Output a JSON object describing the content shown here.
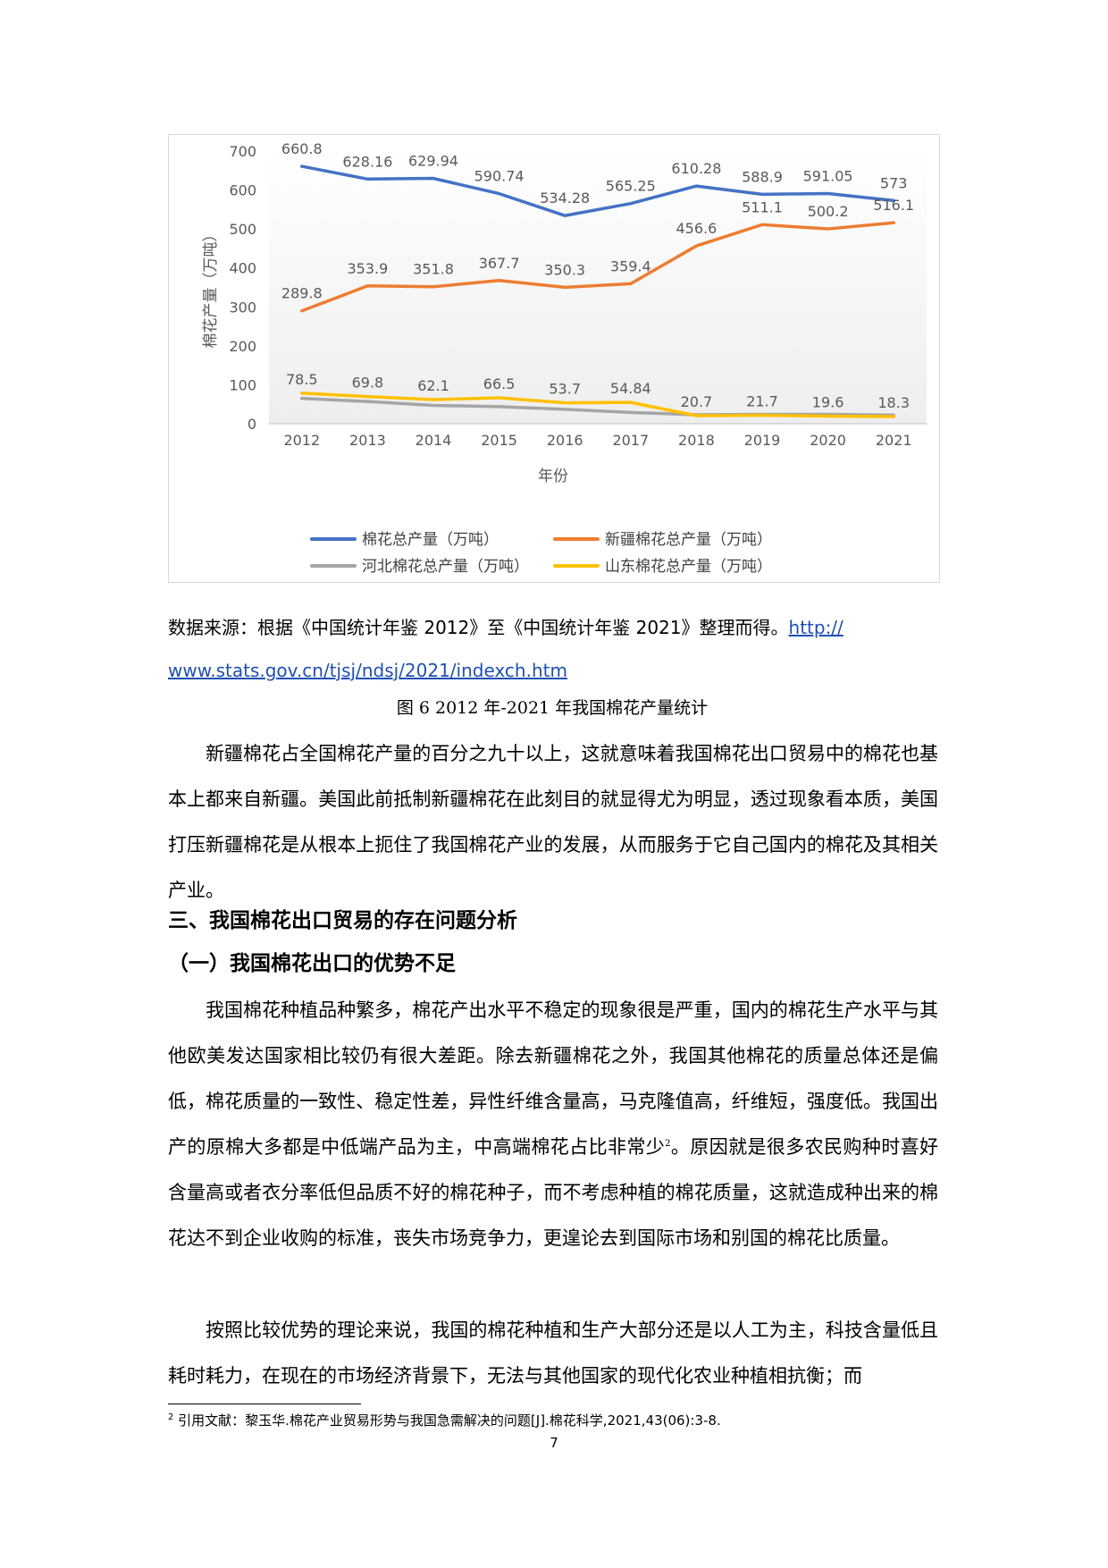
{
  "chart_data": {
    "type": "line",
    "title": "",
    "xlabel": "年份",
    "ylabel": "棉花产量（万吨）",
    "ylim": [
      0,
      700
    ],
    "yticks": [
      "0",
      "100",
      "200",
      "300",
      "400",
      "500",
      "600",
      "700"
    ],
    "categories": [
      "2012",
      "2013",
      "2014",
      "2015",
      "2016",
      "2017",
      "2018",
      "2019",
      "2020",
      "2021"
    ],
    "series": [
      {
        "name": "棉花总产量（万吨）",
        "color": "#4472c4",
        "values": [
          660.8,
          628.16,
          629.94,
          590.74,
          534.28,
          565.25,
          610.28,
          588.9,
          591.05,
          573
        ],
        "labels": [
          "660.8",
          "628.16",
          "629.94",
          "590.74",
          "534.28",
          "565.25",
          "610.28",
          "588.9",
          "591.05",
          "573"
        ]
      },
      {
        "name": "新疆棉花总产量（万吨）",
        "color": "#ed7d31",
        "values": [
          289.8,
          353.9,
          351.8,
          367.7,
          350.3,
          359.4,
          456.6,
          511.1,
          500.2,
          516.1
        ],
        "labels": [
          "289.8",
          "353.9",
          "351.8",
          "367.7",
          "350.3",
          "359.4",
          "456.6",
          "511.1",
          "500.2",
          "516.1"
        ]
      },
      {
        "name": "河北棉花总产量（万吨）",
        "color": "#a5a5a5",
        "values": [
          65,
          57,
          47,
          44,
          37,
          29,
          23,
          24,
          24,
          22
        ],
        "labels": []
      },
      {
        "name": "山东棉花总产量（万吨）",
        "color": "#ffc000",
        "values": [
          78.5,
          69.8,
          62.1,
          66.5,
          53.7,
          54.84,
          20.7,
          21.7,
          19.6,
          18.3
        ],
        "labels": [
          "78.5",
          "69.8",
          "62.1",
          "66.5",
          "53.7",
          "54.84",
          "20.7",
          "21.7",
          "19.6",
          "18.3"
        ]
      }
    ],
    "grid": false,
    "legend": "bottom"
  },
  "source": {
    "text": "数据来源：根据《中国统计年鉴 2012》至《中国统计年鉴 2021》整理而得。",
    "link_part1": "http://",
    "link_part2": "www.stats.gov.cn/tjsj/ndsj/2021/indexch.htm"
  },
  "caption": "图 6 2012 年-2021 年我国棉花产量统计",
  "paragraph1": "新疆棉花占全国棉花产量的百分之九十以上，这就意味着我国棉花出口贸易中的棉花也基本上都来自新疆。美国此前抵制新疆棉花在此刻目的就显得尤为明显，透过现象看本质，美国打压新疆棉花是从根本上扼住了我国棉花产业的发展，从而服务于它自己国内的棉花及其相关产业。",
  "heading1": "三、我国棉花出口贸易的存在问题分析",
  "heading2": "（一）我国棉花出口的优势不足",
  "paragraph2a": "我国棉花种植品种繁多，棉花产出水平不稳定的现象很是严重，国内的棉花生产水平与其他欧美发达国家相比较仍有很大差距。除去新疆棉花之外，我国其他棉花的质量总体还是偏低，棉花质量的一致性、稳定性差，异性纤维含量高，马克隆值高，纤维短，强度低。我国出产的原棉大多都是中低端产品为主，中高端棉花占比非常少",
  "paragraph2_sup": "2",
  "paragraph2b": "。原因就是很多农民购种时喜好含量高或者衣分率低但品质不好的棉花种子，而不考虑种植的棉花质量，这就造成种出来的棉花达不到企业收购的标准，丧失市场竞争力，更遑论去到国际市场和别国的棉花比质量。",
  "paragraph3": "按照比较优势的理论来说，我国的棉花种植和生产大部分还是以人工为主，科技含量低且耗时耗力，在现在的市场经济背景下，无法与其他国家的现代化农业种植相抗衡；而",
  "footnote": {
    "number": "2",
    "text": " 引用文献：黎玉华.棉花产业贸易形势与我国急需解决的问题[J].棉花科学,2021,43(06):3-8."
  },
  "page_number": "7"
}
